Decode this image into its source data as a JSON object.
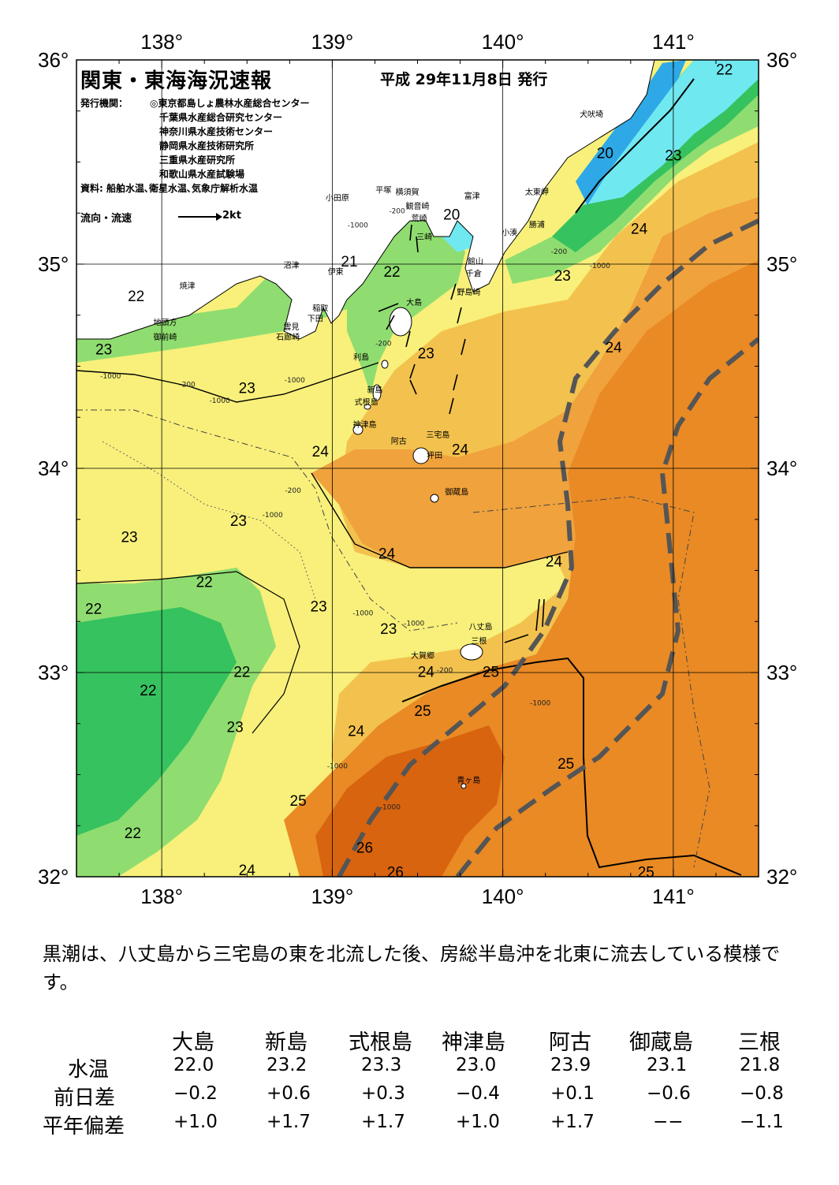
{
  "header": {
    "title": "関東・東海海況速報",
    "date": "平成  29年11月8日 発行",
    "org_label": "発行機関：",
    "organizations": [
      "◎東京都島しょ農林水産総合センター",
      "千葉県水産総合研究センター",
      "神奈川県水産技術センター",
      "静岡県水産技術研究所",
      "三重県水産研究所",
      "和歌山県水産試験場"
    ],
    "sources": "資料: 船舶水温､衛星水温､気象庁解析水温",
    "flow_legend": "流向・流速",
    "flow_unit": "2kt"
  },
  "map": {
    "lon_labels": [
      "138°",
      "139°",
      "140°",
      "141°"
    ],
    "lat_labels": [
      "36°",
      "35°",
      "34°",
      "33°",
      "32°"
    ],
    "colors": {
      "t19": "#2ea8e6",
      "t20": "#70e8f0",
      "t21": "#35c25f",
      "t22": "#8fdd70",
      "t23": "#f8f07a",
      "t23_5": "#f3c24e",
      "t24": "#f0a23c",
      "t25": "#e98a25",
      "t26": "#d8640f",
      "land": "#ffffff",
      "kuroshio": "#555555"
    },
    "isotherm_labels": [
      {
        "text": "22",
        "lon": 141.3,
        "lat": 35.94
      },
      {
        "text": "20",
        "lon": 140.6,
        "lat": 35.53
      },
      {
        "text": "23",
        "lon": 141.0,
        "lat": 35.52
      },
      {
        "text": "20",
        "lon": 139.7,
        "lat": 35.23
      },
      {
        "text": "24",
        "lon": 140.8,
        "lat": 35.16
      },
      {
        "text": "21",
        "lon": 139.1,
        "lat": 35.0
      },
      {
        "text": "22",
        "lon": 139.35,
        "lat": 34.95
      },
      {
        "text": "23",
        "lon": 140.35,
        "lat": 34.93
      },
      {
        "text": "22",
        "lon": 137.85,
        "lat": 34.83
      },
      {
        "text": "24",
        "lon": 140.65,
        "lat": 34.58
      },
      {
        "text": "23",
        "lon": 137.66,
        "lat": 34.57
      },
      {
        "text": "23",
        "lon": 139.55,
        "lat": 34.55
      },
      {
        "text": "23",
        "lon": 138.5,
        "lat": 34.38
      },
      {
        "text": "24",
        "lon": 138.93,
        "lat": 34.07
      },
      {
        "text": "24",
        "lon": 139.75,
        "lat": 34.08
      },
      {
        "text": "23",
        "lon": 138.45,
        "lat": 33.73
      },
      {
        "text": "23",
        "lon": 137.81,
        "lat": 33.65
      },
      {
        "text": "24",
        "lon": 139.32,
        "lat": 33.57
      },
      {
        "text": "24",
        "lon": 140.3,
        "lat": 33.53
      },
      {
        "text": "22",
        "lon": 138.25,
        "lat": 33.43
      },
      {
        "text": "23",
        "lon": 138.92,
        "lat": 33.31
      },
      {
        "text": "22",
        "lon": 137.6,
        "lat": 33.3
      },
      {
        "text": "23",
        "lon": 139.33,
        "lat": 33.2
      },
      {
        "text": "22",
        "lon": 138.47,
        "lat": 32.99
      },
      {
        "text": "24",
        "lon": 139.55,
        "lat": 32.99
      },
      {
        "text": "25",
        "lon": 139.93,
        "lat": 32.99
      },
      {
        "text": "22",
        "lon": 137.92,
        "lat": 32.9
      },
      {
        "text": "25",
        "lon": 139.53,
        "lat": 32.8
      },
      {
        "text": "23",
        "lon": 138.43,
        "lat": 32.72
      },
      {
        "text": "24",
        "lon": 139.14,
        "lat": 32.7
      },
      {
        "text": "25",
        "lon": 140.37,
        "lat": 32.54
      },
      {
        "text": "25",
        "lon": 138.8,
        "lat": 32.36
      },
      {
        "text": "22",
        "lon": 137.83,
        "lat": 32.2
      },
      {
        "text": "26",
        "lon": 139.19,
        "lat": 32.13
      },
      {
        "text": "24",
        "lon": 138.5,
        "lat": 32.02
      },
      {
        "text": "26",
        "lon": 139.37,
        "lat": 32.01
      },
      {
        "text": "25",
        "lon": 140.84,
        "lat": 32.01
      }
    ],
    "depth_labels": [
      {
        "text": "-200",
        "lon": 139.38,
        "lat": 35.25
      },
      {
        "text": "-1000",
        "lon": 139.15,
        "lat": 35.18
      },
      {
        "text": "-1000",
        "lon": 140.57,
        "lat": 34.98
      },
      {
        "text": "-200",
        "lon": 140.33,
        "lat": 35.05
      },
      {
        "text": "-1000",
        "lon": 138.78,
        "lat": 34.42
      },
      {
        "text": "-200",
        "lon": 138.15,
        "lat": 34.4
      },
      {
        "text": "-1000",
        "lon": 137.7,
        "lat": 34.44
      },
      {
        "text": "-1000",
        "lon": 138.34,
        "lat": 34.32
      },
      {
        "text": "-200",
        "lon": 139.3,
        "lat": 34.6
      },
      {
        "text": "-200",
        "lon": 138.77,
        "lat": 33.88
      },
      {
        "text": "-1000",
        "lon": 138.65,
        "lat": 33.76
      },
      {
        "text": "-1000",
        "lon": 139.18,
        "lat": 33.28
      },
      {
        "text": "-1000",
        "lon": 139.48,
        "lat": 33.23
      },
      {
        "text": "-200",
        "lon": 139.66,
        "lat": 33.0
      },
      {
        "text": "-1000",
        "lon": 140.22,
        "lat": 32.84
      },
      {
        "text": "-1000",
        "lon": 139.03,
        "lat": 32.53
      },
      {
        "text": "-1000",
        "lon": 139.34,
        "lat": 32.33
      }
    ],
    "places": [
      {
        "text": "犬吠埼",
        "lon": 140.52,
        "lat": 35.72
      },
      {
        "text": "太東岬",
        "lon": 140.2,
        "lat": 35.34
      },
      {
        "text": "勝浦",
        "lon": 140.2,
        "lat": 35.18
      },
      {
        "text": "小湊",
        "lon": 140.04,
        "lat": 35.14
      },
      {
        "text": "富津",
        "lon": 139.82,
        "lat": 35.32
      },
      {
        "text": "平塚",
        "lon": 139.3,
        "lat": 35.35
      },
      {
        "text": "横須賀",
        "lon": 139.44,
        "lat": 35.34
      },
      {
        "text": "観音崎",
        "lon": 139.5,
        "lat": 35.27
      },
      {
        "text": "荒崎",
        "lon": 139.51,
        "lat": 35.21
      },
      {
        "text": "三崎",
        "lon": 139.54,
        "lat": 35.12
      },
      {
        "text": "小田原",
        "lon": 139.03,
        "lat": 35.31
      },
      {
        "text": "館山",
        "lon": 139.84,
        "lat": 35.0
      },
      {
        "text": "千倉",
        "lon": 139.83,
        "lat": 34.94
      },
      {
        "text": "野島崎",
        "lon": 139.8,
        "lat": 34.85
      },
      {
        "text": "沼津",
        "lon": 138.76,
        "lat": 34.98
      },
      {
        "text": "伊東",
        "lon": 139.02,
        "lat": 34.95
      },
      {
        "text": "焼津",
        "lon": 138.15,
        "lat": 34.88
      },
      {
        "text": "大島",
        "lon": 139.48,
        "lat": 34.8
      },
      {
        "text": "稲取",
        "lon": 138.93,
        "lat": 34.77
      },
      {
        "text": "下田",
        "lon": 138.9,
        "lat": 34.72
      },
      {
        "text": "雲見",
        "lon": 138.76,
        "lat": 34.68
      },
      {
        "text": "石廊崎",
        "lon": 138.74,
        "lat": 34.63
      },
      {
        "text": "地頭方",
        "lon": 138.02,
        "lat": 34.7
      },
      {
        "text": "御前崎",
        "lon": 138.02,
        "lat": 34.63
      },
      {
        "text": "利島",
        "lon": 139.17,
        "lat": 34.53
      },
      {
        "text": "新島",
        "lon": 139.25,
        "lat": 34.37
      },
      {
        "text": "式根島",
        "lon": 139.2,
        "lat": 34.31
      },
      {
        "text": "神津島",
        "lon": 139.19,
        "lat": 34.2
      },
      {
        "text": "三宅島",
        "lon": 139.62,
        "lat": 34.15
      },
      {
        "text": "阿古",
        "lon": 139.39,
        "lat": 34.12
      },
      {
        "text": "坪田",
        "lon": 139.6,
        "lat": 34.05
      },
      {
        "text": "御蔵島",
        "lon": 139.73,
        "lat": 33.87
      },
      {
        "text": "八丈島",
        "lon": 139.87,
        "lat": 33.21
      },
      {
        "text": "三根",
        "lon": 139.86,
        "lat": 33.14
      },
      {
        "text": "大賀郷",
        "lon": 139.53,
        "lat": 33.07
      },
      {
        "text": "青ヶ島",
        "lon": 139.8,
        "lat": 32.46
      }
    ]
  },
  "summary": "黒潮は、八丈島から三宅島の東を北流した後、房総半島沖を北東に流去している模様です。",
  "table": {
    "columns": [
      "大島",
      "新島",
      "式根島",
      "神津島",
      "阿古",
      "御蔵島",
      "三根"
    ],
    "rows": [
      {
        "label": "水温",
        "values": [
          "22.0",
          "23.2",
          "23.3",
          "23.0",
          "23.9",
          "23.1",
          "21.8"
        ]
      },
      {
        "label": "前日差",
        "values": [
          "−0.2",
          "+0.6",
          "+0.3",
          "−0.4",
          "+0.1",
          "−0.6",
          "−0.8"
        ]
      },
      {
        "label": "平年偏差",
        "values": [
          "+1.0",
          "+1.7",
          "+1.7",
          "+1.0",
          "+1.7",
          "−−",
          "−1.1"
        ]
      }
    ]
  }
}
